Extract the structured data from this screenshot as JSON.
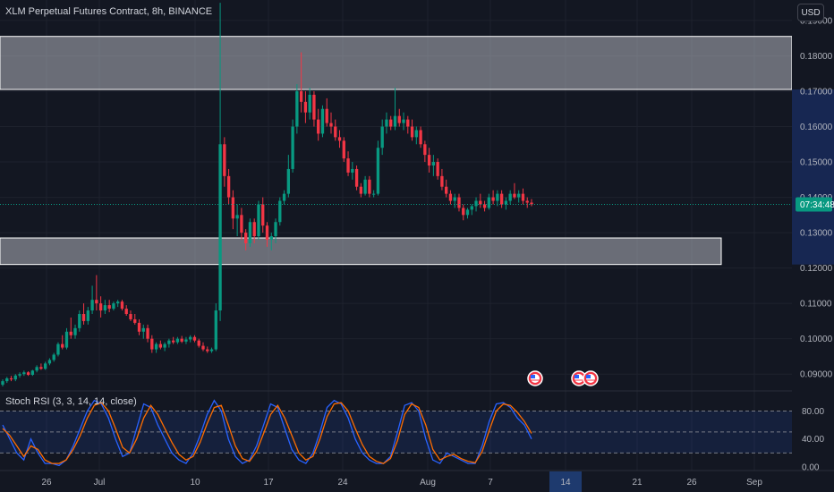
{
  "header": {
    "symbol_title": "XLM Perpetual Futures Contract, 8h, BINANCE",
    "currency_button": "USD"
  },
  "indicator": {
    "label": "Stoch RSI (3, 3, 14, 14, close)",
    "levels": [
      80,
      20
    ],
    "axis_ticks": [
      "80.00",
      "40.00",
      "0.00"
    ],
    "k_color": "#2962ff",
    "d_color": "#ff6d00",
    "k_values": [
      60,
      40,
      20,
      10,
      40,
      20,
      5,
      5,
      2,
      10,
      30,
      55,
      80,
      95,
      90,
      70,
      40,
      15,
      20,
      55,
      90,
      85,
      60,
      40,
      20,
      10,
      5,
      20,
      45,
      75,
      95,
      80,
      40,
      15,
      5,
      10,
      30,
      60,
      90,
      85,
      55,
      25,
      10,
      5,
      20,
      50,
      85,
      95,
      90,
      70,
      40,
      20,
      10,
      5,
      5,
      15,
      50,
      88,
      92,
      80,
      40,
      10,
      5,
      20,
      15,
      10,
      5,
      5,
      30,
      65,
      90,
      92,
      85,
      70,
      60,
      40
    ],
    "d_values": [
      55,
      45,
      30,
      15,
      30,
      25,
      10,
      5,
      5,
      10,
      25,
      45,
      70,
      88,
      92,
      80,
      55,
      28,
      20,
      40,
      70,
      88,
      75,
      55,
      35,
      18,
      10,
      15,
      35,
      62,
      85,
      88,
      60,
      30,
      12,
      8,
      22,
      48,
      75,
      88,
      70,
      45,
      20,
      10,
      15,
      40,
      72,
      90,
      92,
      80,
      55,
      32,
      15,
      8,
      5,
      12,
      38,
      75,
      90,
      85,
      60,
      25,
      10,
      15,
      18,
      12,
      8,
      6,
      22,
      52,
      80,
      90,
      88,
      78,
      65,
      48
    ]
  },
  "price_axis": {
    "ticks": [
      "0.19000",
      "0.18000",
      "0.17000",
      "0.16000",
      "0.15000",
      "0.14000",
      "0.13000",
      "0.12000",
      "0.11000",
      "0.10000",
      "0.09000"
    ],
    "current_price_time": "07:34:48",
    "current_price_color": "#089981"
  },
  "time_axis": {
    "labels": [
      "26",
      "Jul",
      "10",
      "17",
      "24",
      "Aug",
      "7",
      "14",
      "21",
      "26",
      "Sep"
    ],
    "highlighted_label": "14"
  },
  "zones": [
    {
      "name": "upper-resistance-zone",
      "low": 0.1705,
      "high": 0.1855
    },
    {
      "name": "lower-support-zone",
      "low": 0.121,
      "high": 0.1285
    }
  ],
  "event_markers": {
    "icon": "us-flag-icon",
    "count": 3
  },
  "colors": {
    "up": "#089981",
    "down": "#f23645",
    "background": "#131722",
    "grid": "#1e222d"
  },
  "chart_data": {
    "type": "candlestick",
    "title": "XLM Perpetual Futures Contract, 8h, BINANCE",
    "y_range": [
      0.0855,
      0.1958
    ],
    "candles": [
      [
        0.087,
        0.0885,
        0.0865,
        0.088
      ],
      [
        0.088,
        0.0892,
        0.0875,
        0.0888
      ],
      [
        0.0888,
        0.0895,
        0.088,
        0.0885
      ],
      [
        0.0885,
        0.09,
        0.088,
        0.0896
      ],
      [
        0.0896,
        0.0905,
        0.089,
        0.09
      ],
      [
        0.09,
        0.091,
        0.0895,
        0.0905
      ],
      [
        0.0905,
        0.0908,
        0.0895,
        0.0898
      ],
      [
        0.0898,
        0.0912,
        0.0895,
        0.091
      ],
      [
        0.091,
        0.0925,
        0.0905,
        0.092
      ],
      [
        0.092,
        0.093,
        0.0912,
        0.0915
      ],
      [
        0.0915,
        0.0935,
        0.0912,
        0.093
      ],
      [
        0.093,
        0.0945,
        0.0925,
        0.094
      ],
      [
        0.094,
        0.096,
        0.0935,
        0.0955
      ],
      [
        0.0955,
        0.099,
        0.095,
        0.0985
      ],
      [
        0.0985,
        0.101,
        0.097,
        0.0975
      ],
      [
        0.0975,
        0.103,
        0.097,
        0.102
      ],
      [
        0.102,
        0.106,
        0.1,
        0.101
      ],
      [
        0.101,
        0.104,
        0.1,
        0.103
      ],
      [
        0.103,
        0.108,
        0.102,
        0.107
      ],
      [
        0.107,
        0.11,
        0.104,
        0.105
      ],
      [
        0.105,
        0.109,
        0.104,
        0.108
      ],
      [
        0.108,
        0.115,
        0.107,
        0.111
      ],
      [
        0.111,
        0.118,
        0.108,
        0.11
      ],
      [
        0.11,
        0.112,
        0.106,
        0.108
      ],
      [
        0.108,
        0.111,
        0.107,
        0.1095
      ],
      [
        0.1095,
        0.111,
        0.1075,
        0.1085
      ],
      [
        0.1085,
        0.1105,
        0.108,
        0.11
      ],
      [
        0.11,
        0.111,
        0.109,
        0.1105
      ],
      [
        0.1105,
        0.111,
        0.108,
        0.1085
      ],
      [
        0.1085,
        0.1095,
        0.1065,
        0.107
      ],
      [
        0.107,
        0.108,
        0.105,
        0.1055
      ],
      [
        0.1055,
        0.107,
        0.104,
        0.1045
      ],
      [
        0.1045,
        0.1055,
        0.101,
        0.102
      ],
      [
        0.102,
        0.104,
        0.1,
        0.103
      ],
      [
        0.103,
        0.104,
        0.099,
        0.1
      ],
      [
        0.1,
        0.101,
        0.096,
        0.097
      ],
      [
        0.097,
        0.099,
        0.096,
        0.0985
      ],
      [
        0.0985,
        0.0995,
        0.097,
        0.0975
      ],
      [
        0.0975,
        0.099,
        0.0965,
        0.0985
      ],
      [
        0.0985,
        0.1,
        0.0975,
        0.0995
      ],
      [
        0.0995,
        0.1005,
        0.0985,
        0.099
      ],
      [
        0.099,
        0.1005,
        0.0985,
        0.1
      ],
      [
        0.1,
        0.1008,
        0.0988,
        0.0992
      ],
      [
        0.0992,
        0.1005,
        0.0985,
        0.0998
      ],
      [
        0.0998,
        0.101,
        0.099,
        0.1005
      ],
      [
        0.1005,
        0.101,
        0.099,
        0.0995
      ],
      [
        0.0995,
        0.1,
        0.0975,
        0.098
      ],
      [
        0.098,
        0.099,
        0.0965,
        0.097
      ],
      [
        0.097,
        0.0978,
        0.096,
        0.0965
      ],
      [
        0.0965,
        0.0975,
        0.096,
        0.097
      ],
      [
        0.097,
        0.11,
        0.0965,
        0.108
      ],
      [
        0.108,
        0.195,
        0.105,
        0.155
      ],
      [
        0.155,
        0.157,
        0.143,
        0.146
      ],
      [
        0.146,
        0.148,
        0.138,
        0.14
      ],
      [
        0.14,
        0.142,
        0.131,
        0.134
      ],
      [
        0.134,
        0.138,
        0.129,
        0.135
      ],
      [
        0.135,
        0.137,
        0.128,
        0.13
      ],
      [
        0.13,
        0.131,
        0.125,
        0.127
      ],
      [
        0.127,
        0.134,
        0.126,
        0.133
      ],
      [
        0.133,
        0.134,
        0.127,
        0.129
      ],
      [
        0.129,
        0.139,
        0.128,
        0.138
      ],
      [
        0.138,
        0.14,
        0.13,
        0.132
      ],
      [
        0.132,
        0.133,
        0.126,
        0.128
      ],
      [
        0.128,
        0.13,
        0.125,
        0.129
      ],
      [
        0.129,
        0.134,
        0.127,
        0.133
      ],
      [
        0.133,
        0.14,
        0.132,
        0.139
      ],
      [
        0.139,
        0.142,
        0.138,
        0.141
      ],
      [
        0.141,
        0.152,
        0.14,
        0.148
      ],
      [
        0.148,
        0.162,
        0.147,
        0.16
      ],
      [
        0.16,
        0.172,
        0.158,
        0.17
      ],
      [
        0.17,
        0.181,
        0.164,
        0.167
      ],
      [
        0.167,
        0.17,
        0.161,
        0.164
      ],
      [
        0.164,
        0.171,
        0.162,
        0.169
      ],
      [
        0.169,
        0.17,
        0.16,
        0.162
      ],
      [
        0.162,
        0.165,
        0.156,
        0.158
      ],
      [
        0.158,
        0.166,
        0.157,
        0.165
      ],
      [
        0.165,
        0.168,
        0.16,
        0.161
      ],
      [
        0.161,
        0.164,
        0.158,
        0.16
      ],
      [
        0.16,
        0.162,
        0.156,
        0.157
      ],
      [
        0.157,
        0.159,
        0.154,
        0.156
      ],
      [
        0.156,
        0.157,
        0.15,
        0.151
      ],
      [
        0.151,
        0.153,
        0.146,
        0.147
      ],
      [
        0.147,
        0.15,
        0.145,
        0.148
      ],
      [
        0.148,
        0.149,
        0.142,
        0.143
      ],
      [
        0.143,
        0.144,
        0.14,
        0.141
      ],
      [
        0.141,
        0.146,
        0.1405,
        0.145
      ],
      [
        0.145,
        0.146,
        0.14,
        0.141
      ],
      [
        0.141,
        0.142,
        0.14,
        0.141
      ],
      [
        0.141,
        0.156,
        0.1405,
        0.154
      ],
      [
        0.154,
        0.162,
        0.152,
        0.16
      ],
      [
        0.16,
        0.164,
        0.158,
        0.162
      ],
      [
        0.162,
        0.163,
        0.159,
        0.16
      ],
      [
        0.16,
        0.171,
        0.159,
        0.163
      ],
      [
        0.163,
        0.165,
        0.16,
        0.161
      ],
      [
        0.161,
        0.164,
        0.159,
        0.162
      ],
      [
        0.162,
        0.163,
        0.158,
        0.16
      ],
      [
        0.16,
        0.162,
        0.156,
        0.157
      ],
      [
        0.157,
        0.16,
        0.155,
        0.159
      ],
      [
        0.159,
        0.16,
        0.154,
        0.155
      ],
      [
        0.155,
        0.156,
        0.15,
        0.152
      ],
      [
        0.152,
        0.154,
        0.147,
        0.149
      ],
      [
        0.149,
        0.152,
        0.146,
        0.15
      ],
      [
        0.15,
        0.151,
        0.145,
        0.146
      ],
      [
        0.146,
        0.148,
        0.142,
        0.143
      ],
      [
        0.143,
        0.145,
        0.14,
        0.141
      ],
      [
        0.141,
        0.142,
        0.138,
        0.139
      ],
      [
        0.139,
        0.141,
        0.137,
        0.14
      ],
      [
        0.14,
        0.141,
        0.136,
        0.137
      ],
      [
        0.137,
        0.138,
        0.1335,
        0.135
      ],
      [
        0.135,
        0.137,
        0.134,
        0.1365
      ],
      [
        0.1365,
        0.138,
        0.135,
        0.1375
      ],
      [
        0.1375,
        0.14,
        0.136,
        0.139
      ],
      [
        0.139,
        0.141,
        0.137,
        0.138
      ],
      [
        0.138,
        0.139,
        0.136,
        0.137
      ],
      [
        0.137,
        0.141,
        0.1365,
        0.14
      ],
      [
        0.14,
        0.142,
        0.138,
        0.139
      ],
      [
        0.139,
        0.142,
        0.1375,
        0.141
      ],
      [
        0.141,
        0.142,
        0.137,
        0.138
      ],
      [
        0.138,
        0.14,
        0.1365,
        0.139
      ],
      [
        0.139,
        0.142,
        0.138,
        0.141
      ],
      [
        0.141,
        0.144,
        0.1395,
        0.14
      ],
      [
        0.14,
        0.142,
        0.1385,
        0.141
      ],
      [
        0.141,
        0.1425,
        0.138,
        0.139
      ],
      [
        0.139,
        0.14,
        0.137,
        0.1385
      ],
      [
        0.1385,
        0.1395,
        0.1375,
        0.138
      ]
    ]
  }
}
